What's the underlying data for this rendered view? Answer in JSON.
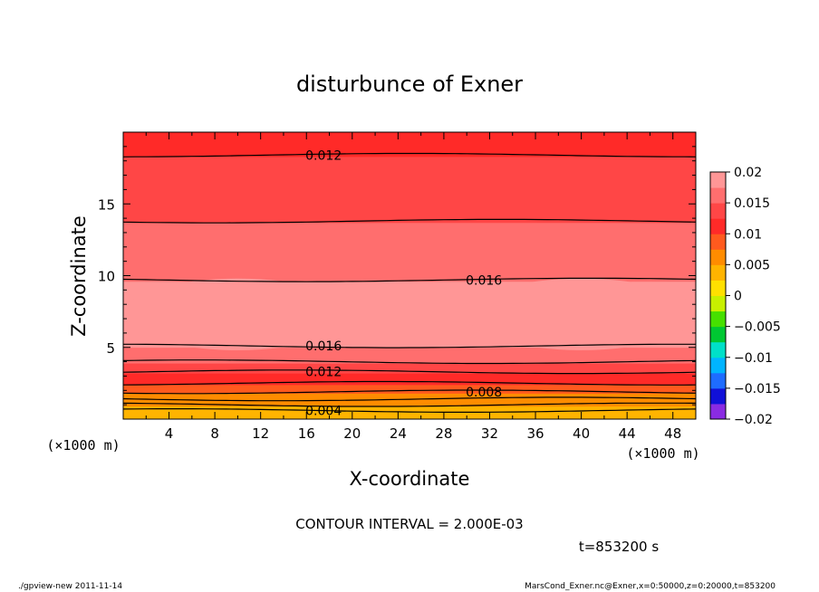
{
  "chart_data": {
    "type": "contour",
    "title": "disturbunce of Exner",
    "xlabel": "X-coordinate",
    "ylabel": "Z-coordinate",
    "x_unit_left": "(×1000 m)",
    "x_unit_right": "(×1000 m)",
    "xlim": [
      0,
      50
    ],
    "ylim": [
      0,
      20
    ],
    "x_ticks": [
      4,
      8,
      12,
      16,
      20,
      24,
      28,
      32,
      36,
      40,
      44,
      48
    ],
    "y_ticks": [
      5,
      10,
      15
    ],
    "contour_interval_text": "CONTOUR INTERVAL = 2.000E-03",
    "time_text": "t=853200 s",
    "contour_labels": [
      {
        "text": "0.012",
        "x": 17.5,
        "z": 18.4
      },
      {
        "text": "0.016",
        "x": 31.5,
        "z": 9.7
      },
      {
        "text": "0.016",
        "x": 17.5,
        "z": 5.1
      },
      {
        "text": "0.012",
        "x": 17.5,
        "z": 3.3
      },
      {
        "text": "0.008",
        "x": 31.5,
        "z": 1.9
      },
      {
        "text": "0.004",
        "x": 17.5,
        "z": 0.6
      }
    ],
    "levels": [
      {
        "z": 0.6,
        "value": 0.004
      },
      {
        "z": 1.0,
        "value": 0.005
      },
      {
        "z": 1.4,
        "value": 0.006
      },
      {
        "z": 1.9,
        "value": 0.008
      },
      {
        "z": 2.5,
        "value": 0.009
      },
      {
        "z": 3.3,
        "value": 0.012
      },
      {
        "z": 4.0,
        "value": 0.014
      },
      {
        "z": 5.1,
        "value": 0.016
      },
      {
        "z": 9.7,
        "value": 0.016
      },
      {
        "z": 13.8,
        "value": 0.014
      },
      {
        "z": 18.4,
        "value": 0.012
      }
    ],
    "colorbar": {
      "ticks": [
        "0.02",
        "0.015",
        "0.01",
        "0.005",
        "0",
        "−0.005",
        "−0.01",
        "−0.015",
        "−0.02"
      ],
      "range": [
        -0.02,
        0.02
      ],
      "colors": [
        "#8a2be2",
        "#1010d8",
        "#1e6cff",
        "#00b4ff",
        "#00e0c8",
        "#00c832",
        "#46e000",
        "#c8f000",
        "#ffe000",
        "#ffb400",
        "#ff8c00",
        "#ff5a1e",
        "#ff2a28",
        "#ff4646",
        "#ff6e6e",
        "#ff9696"
      ]
    }
  },
  "footer": {
    "left": "./gpview-new   2011-11-14",
    "right": "MarsCond_Exner.nc@Exner,x=0:50000,z=0:20000,t=853200"
  }
}
